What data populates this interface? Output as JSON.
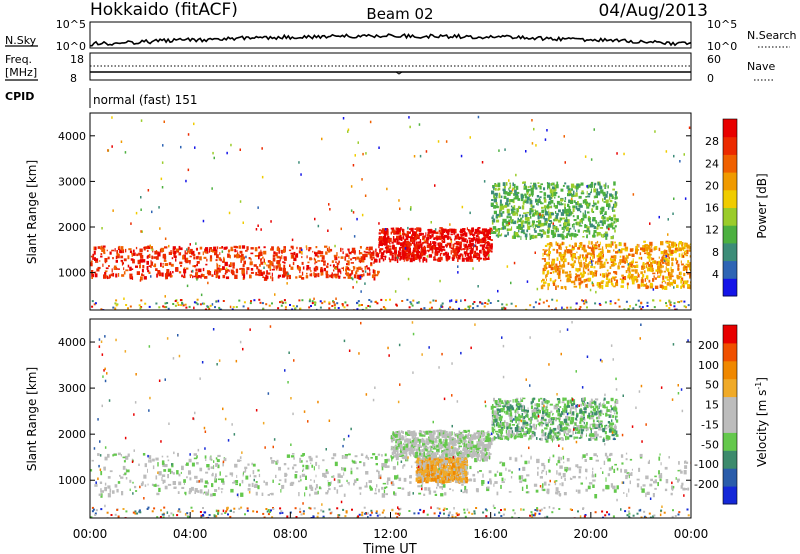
{
  "header": {
    "radar": "Hokkaido (fitACF)",
    "beam": "Beam 02",
    "date": "04/Aug/2013"
  },
  "sky_panel": {
    "left_label": "N.Sky",
    "left_ticks": [
      "10^5",
      "10^0"
    ],
    "right_ticks": [
      "10^5",
      "10^0"
    ],
    "right_label": "N.Search"
  },
  "freq_panel": {
    "left_label_line1": "Freq.",
    "left_label_line2": "[MHz]",
    "left_ticks": [
      "18",
      "8"
    ],
    "right_ticks": [
      "60",
      "0"
    ],
    "right_label": "Nave"
  },
  "cpid_panel": {
    "label": "CPID",
    "value": "normal (fast) 151"
  },
  "time_axis": {
    "ticks": [
      "00:00",
      "04:00",
      "08:00",
      "12:00",
      "16:00",
      "20:00",
      "00:00"
    ],
    "label": "Time UT"
  },
  "chart_data": [
    {
      "type": "heatmap",
      "panel": "power",
      "ylabel": "Slant Range [km]",
      "yticks": [
        "1000",
        "2000",
        "3000",
        "4000"
      ],
      "ylim": [
        180,
        4500
      ],
      "xlim": [
        0,
        24
      ],
      "colorbar": {
        "label": "Power [dB]",
        "ticks": [
          "4",
          "8",
          "12",
          "16",
          "20",
          "24",
          "28"
        ],
        "range": [
          0,
          30
        ],
        "colors": [
          "#1414e8",
          "#2e64b4",
          "#3c8c78",
          "#4cb040",
          "#9acc2a",
          "#f0cc00",
          "#f09a00",
          "#f06000",
          "#ec2a00",
          "#e80000"
        ]
      },
      "bands": [
        {
          "t0": 0.0,
          "t1": 11.5,
          "r0": 900,
          "r1": 1600,
          "color_index": 8
        },
        {
          "t0": 11.5,
          "t1": 16.0,
          "r0": 1300,
          "r1": 2000,
          "color_index": 9
        },
        {
          "t0": 16.0,
          "t1": 21.0,
          "r0": 1800,
          "r1": 3000,
          "color_index": 3
        },
        {
          "t0": 18.0,
          "t1": 24.0,
          "r0": 700,
          "r1": 1700,
          "color_index": 6
        }
      ]
    },
    {
      "type": "heatmap",
      "panel": "velocity",
      "ylabel": "Slant Range [km]",
      "yticks": [
        "1000",
        "2000",
        "3000",
        "4000"
      ],
      "ylim": [
        180,
        4500
      ],
      "xlim": [
        0,
        24
      ],
      "colorbar": {
        "label": "Velocity [m s",
        "label_sup": "-1",
        "label_close": "]",
        "ticks": [
          "200",
          "100",
          "50",
          "15",
          "-15",
          "-50",
          "-100",
          "-200"
        ],
        "range": [
          -250,
          250
        ],
        "colors": [
          "#1428d8",
          "#2a5caa",
          "#3c8a6c",
          "#64c84c",
          "#bcbcbc",
          "#bcbcbc",
          "#f0aa28",
          "#f08800",
          "#f05000",
          "#e80000"
        ]
      },
      "bands": [
        {
          "t0": 0.0,
          "t1": 24.0,
          "r0": 700,
          "r1": 1600,
          "color_index": 4
        },
        {
          "t0": 12.0,
          "t1": 16.0,
          "r0": 1500,
          "r1": 2100,
          "color_index": 4
        },
        {
          "t0": 16.0,
          "t1": 21.0,
          "r0": 1900,
          "r1": 2800,
          "color_index": 3
        },
        {
          "t0": 13.0,
          "t1": 15.0,
          "r0": 1000,
          "r1": 1500,
          "color_index": 6
        }
      ]
    }
  ]
}
